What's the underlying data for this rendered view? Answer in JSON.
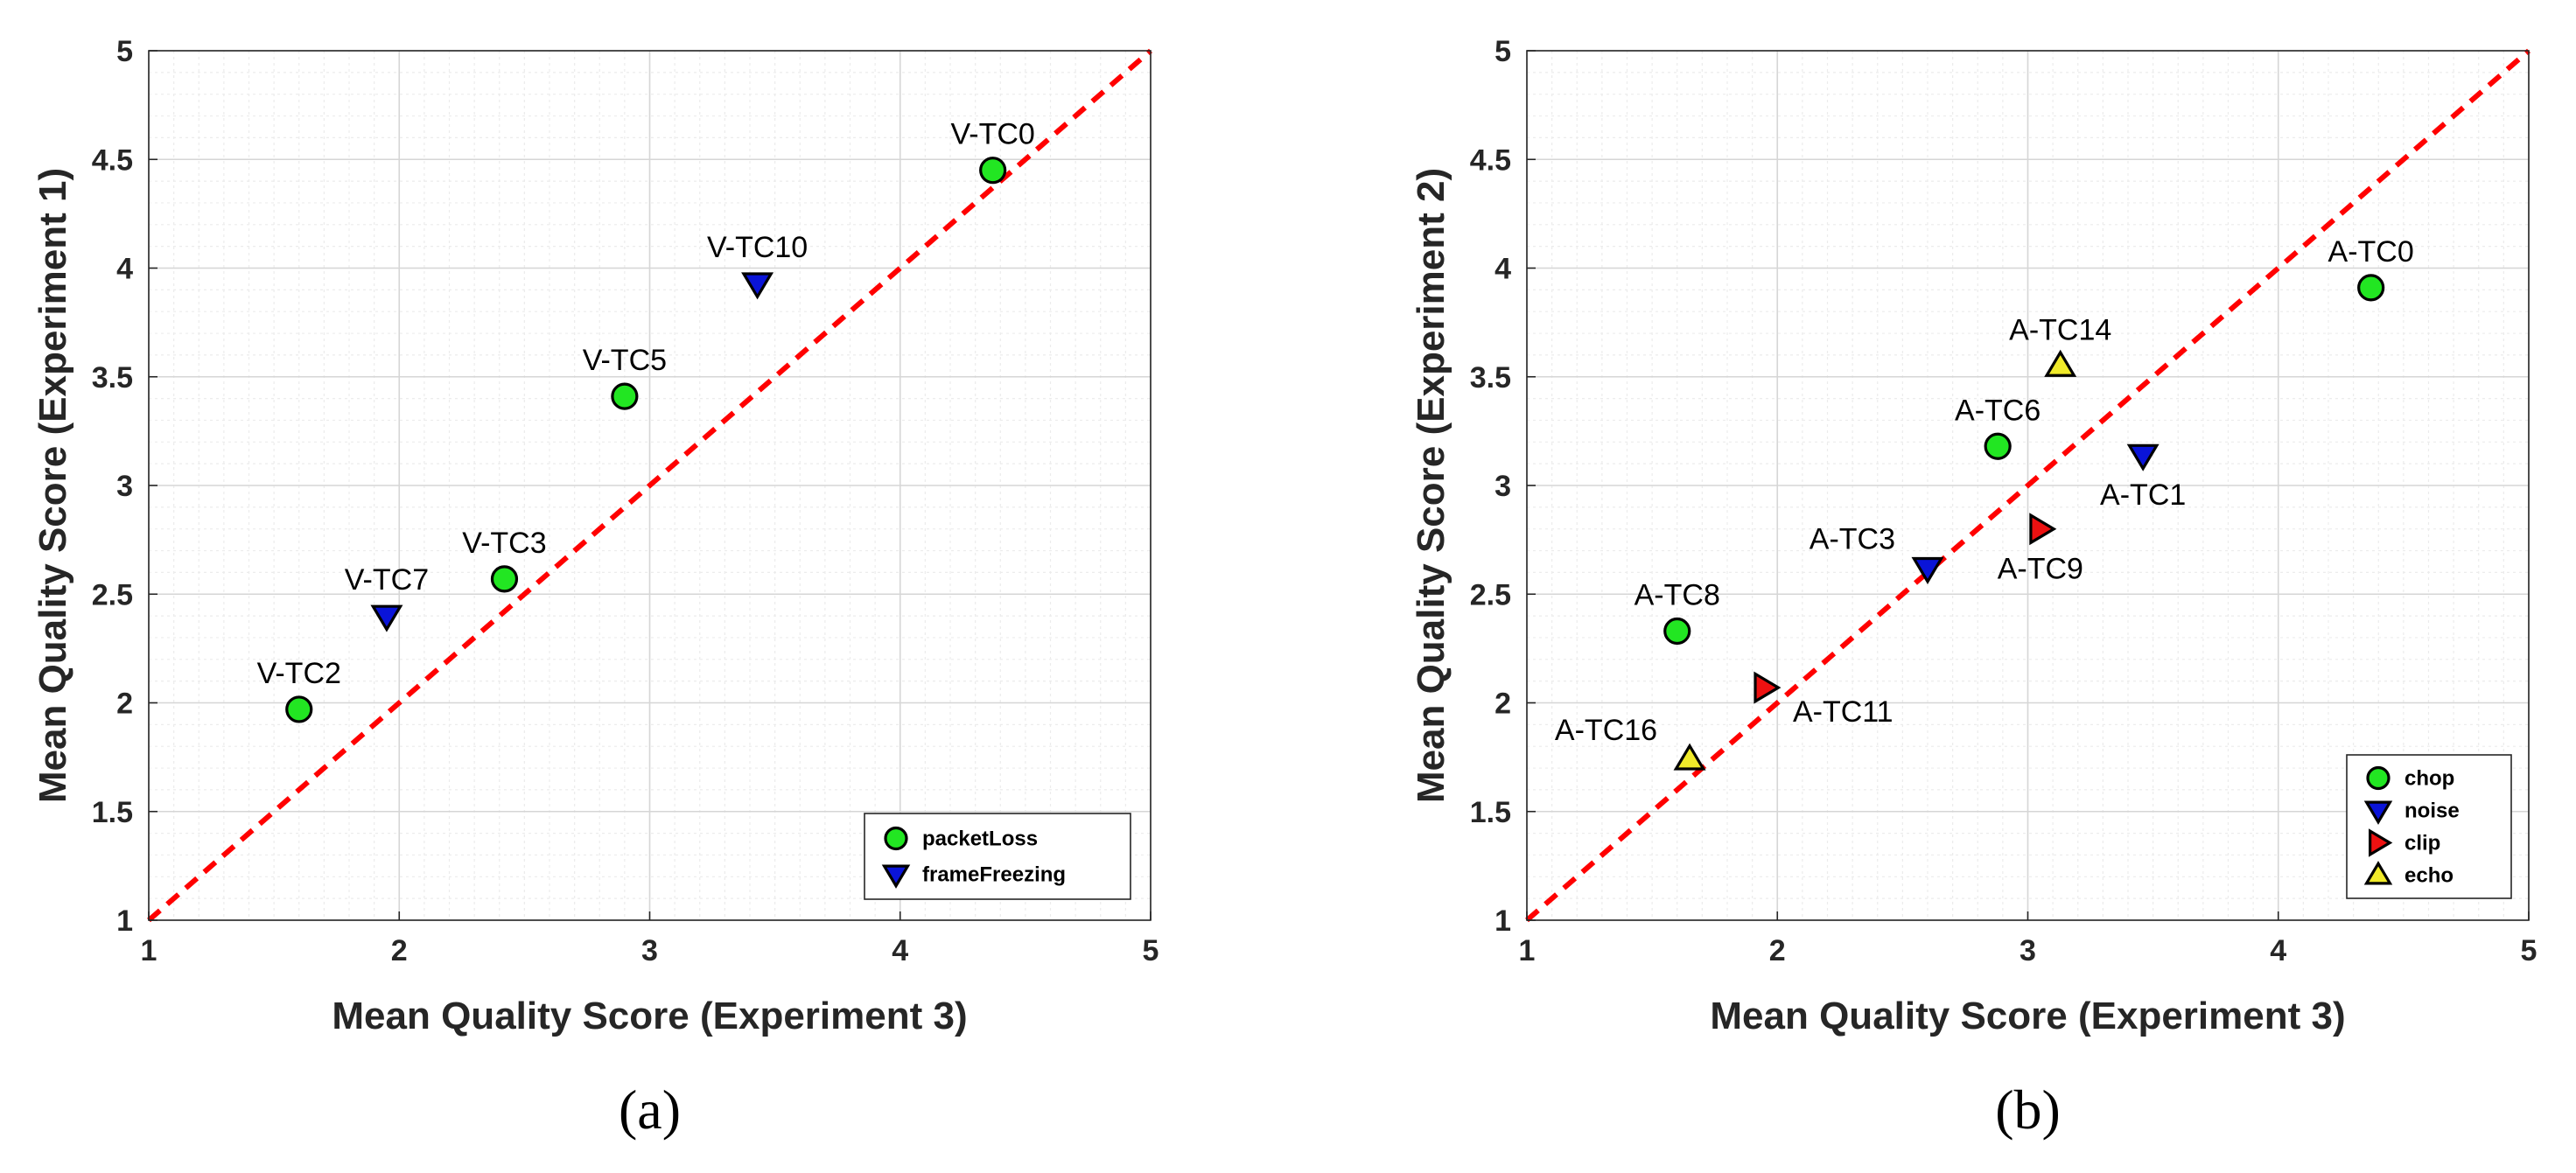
{
  "chart_data": [
    {
      "type": "scatter",
      "caption": "(a)",
      "xlabel": "Mean Quality Score (Experiment 3)",
      "ylabel": "Mean Quality Score (Experiment 1)",
      "xlim": [
        1,
        5
      ],
      "ylim": [
        1,
        5
      ],
      "xticks": [
        "1",
        "2",
        "3",
        "4",
        "5"
      ],
      "yticks": [
        "1",
        "1.5",
        "2",
        "2.5",
        "3",
        "3.5",
        "4",
        "4.5",
        "5"
      ],
      "grid": true,
      "reference_line": "y = x",
      "reference_color": "#ff0000",
      "legend_position": "bottom-right",
      "series": [
        {
          "name": "packetLoss",
          "marker": "circle",
          "color": "#22e622",
          "points": [
            {
              "label": "V-TC0",
              "x": 4.37,
              "y": 4.45,
              "label_pos": "above"
            },
            {
              "label": "V-TC5",
              "x": 2.9,
              "y": 3.41,
              "label_pos": "above"
            },
            {
              "label": "V-TC3",
              "x": 2.42,
              "y": 2.57,
              "label_pos": "above"
            },
            {
              "label": "V-TC2",
              "x": 1.6,
              "y": 1.97,
              "label_pos": "above"
            }
          ]
        },
        {
          "name": "frameFreezing",
          "marker": "triangle-down",
          "color": "#0a14d8",
          "points": [
            {
              "label": "V-TC10",
              "x": 3.43,
              "y": 3.93,
              "label_pos": "above"
            },
            {
              "label": "V-TC7",
              "x": 1.95,
              "y": 2.4,
              "label_pos": "above"
            }
          ]
        }
      ]
    },
    {
      "type": "scatter",
      "caption": "(b)",
      "xlabel": "Mean Quality Score (Experiment 3)",
      "ylabel": "Mean Quality Score (Experiment 2)",
      "xlim": [
        1,
        5
      ],
      "ylim": [
        1,
        5
      ],
      "xticks": [
        "1",
        "2",
        "3",
        "4",
        "5"
      ],
      "yticks": [
        "1",
        "1.5",
        "2",
        "2.5",
        "3",
        "3.5",
        "4",
        "4.5",
        "5"
      ],
      "grid": true,
      "reference_line": "y = x",
      "reference_color": "#ff0000",
      "legend_position": "bottom-right",
      "series": [
        {
          "name": "chop",
          "marker": "circle",
          "color": "#22e622",
          "points": [
            {
              "label": "A-TC0",
              "x": 4.37,
              "y": 3.91,
              "label_pos": "above"
            },
            {
              "label": "A-TC6",
              "x": 2.88,
              "y": 3.18,
              "label_pos": "above"
            },
            {
              "label": "A-TC8",
              "x": 1.6,
              "y": 2.33,
              "label_pos": "above"
            }
          ]
        },
        {
          "name": "noise",
          "marker": "triangle-down",
          "color": "#0a14d8",
          "points": [
            {
              "label": "A-TC1",
              "x": 3.46,
              "y": 3.14,
              "label_pos": "below"
            },
            {
              "label": "A-TC3",
              "x": 2.6,
              "y": 2.62,
              "label_pos": "above-left"
            }
          ]
        },
        {
          "name": "clip",
          "marker": "triangle-right",
          "color": "#ee1111",
          "points": [
            {
              "label": "A-TC9",
              "x": 3.05,
              "y": 2.8,
              "label_pos": "below"
            },
            {
              "label": "A-TC11",
              "x": 1.95,
              "y": 2.07,
              "label_pos": "below-right"
            }
          ]
        },
        {
          "name": "echo",
          "marker": "triangle-up",
          "color": "#f0ea2a",
          "points": [
            {
              "label": "A-TC14",
              "x": 3.13,
              "y": 3.55,
              "label_pos": "above"
            },
            {
              "label": "A-TC16",
              "x": 1.65,
              "y": 1.74,
              "label_pos": "above-left"
            }
          ]
        }
      ]
    }
  ]
}
